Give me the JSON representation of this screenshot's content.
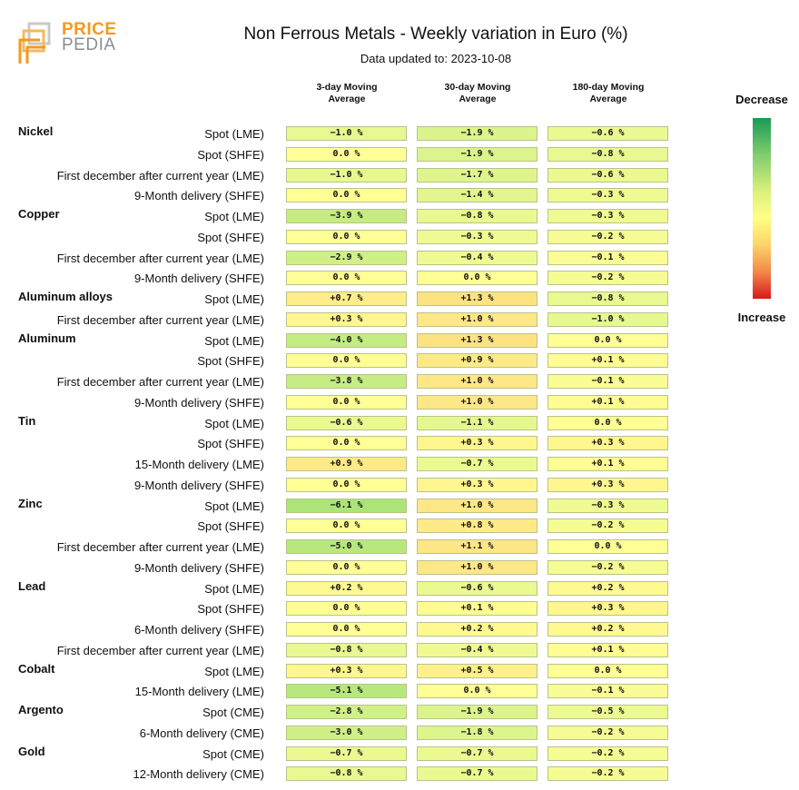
{
  "header": {
    "logo_top": "PRICE",
    "logo_bottom": "PEDIA",
    "title": "Non Ferrous Metals - Weekly variation in Euro (%)",
    "subtitle": "Data updated to: 2023-10-08"
  },
  "legend": {
    "top": "Decrease",
    "bottom": "Increase"
  },
  "colors": {
    "accent": "#f39a1e",
    "logo_gray": "#8a8f96"
  },
  "chart_data": {
    "type": "table",
    "columns": [
      "3-day Moving\nAverage",
      "30-day Moving\nAverage",
      "180-day Moving\nAverage"
    ],
    "groups": [
      {
        "name": "Nickel",
        "rows": [
          {
            "label": "Spot (LME)",
            "values": [
              -1.0,
              -1.9,
              -0.6
            ],
            "text": [
              "−1.0 %",
              "−1.9 %",
              "−0.6 %"
            ]
          },
          {
            "label": "Spot (SHFE)",
            "values": [
              0.0,
              -1.9,
              -0.8
            ],
            "text": [
              "0.0 %",
              "−1.9 %",
              "−0.8 %"
            ]
          },
          {
            "label": "First december after current year (LME)",
            "values": [
              -1.0,
              -1.7,
              -0.6
            ],
            "text": [
              "−1.0 %",
              "−1.7 %",
              "−0.6 %"
            ]
          },
          {
            "label": "9-Month delivery (SHFE)",
            "values": [
              0.0,
              -1.4,
              -0.3
            ],
            "text": [
              "0.0 %",
              "−1.4 %",
              "−0.3 %"
            ]
          }
        ]
      },
      {
        "name": "Copper",
        "rows": [
          {
            "label": "Spot (LME)",
            "values": [
              -3.9,
              -0.8,
              -0.3
            ],
            "text": [
              "−3.9 %",
              "−0.8 %",
              "−0.3 %"
            ]
          },
          {
            "label": "Spot (SHFE)",
            "values": [
              0.0,
              -0.3,
              -0.2
            ],
            "text": [
              "0.0 %",
              "−0.3 %",
              "−0.2 %"
            ]
          },
          {
            "label": "First december after current year (LME)",
            "values": [
              -2.9,
              -0.4,
              -0.1
            ],
            "text": [
              "−2.9 %",
              "−0.4 %",
              "−0.1 %"
            ]
          },
          {
            "label": "9-Month delivery (SHFE)",
            "values": [
              0.0,
              0.0,
              -0.2
            ],
            "text": [
              "0.0 %",
              "0.0 %",
              "−0.2 %"
            ]
          }
        ]
      },
      {
        "name": "Aluminum alloys",
        "rows": [
          {
            "label": "Spot (LME)",
            "values": [
              0.7,
              1.3,
              -0.8
            ],
            "text": [
              "+0.7 %",
              "+1.3 %",
              "−0.8 %"
            ]
          },
          {
            "label": "First december after current year (LME)",
            "values": [
              0.3,
              1.0,
              -1.0
            ],
            "text": [
              "+0.3 %",
              "+1.0 %",
              "−1.0 %"
            ]
          }
        ]
      },
      {
        "name": "Aluminum",
        "rows": [
          {
            "label": "Spot (LME)",
            "values": [
              -4.0,
              1.3,
              0.0
            ],
            "text": [
              "−4.0 %",
              "+1.3 %",
              "0.0 %"
            ]
          },
          {
            "label": "Spot (SHFE)",
            "values": [
              0.0,
              0.9,
              0.1
            ],
            "text": [
              "0.0 %",
              "+0.9 %",
              "+0.1 %"
            ]
          },
          {
            "label": "First december after current year (LME)",
            "values": [
              -3.8,
              1.0,
              -0.1
            ],
            "text": [
              "−3.8 %",
              "+1.0 %",
              "−0.1 %"
            ]
          },
          {
            "label": "9-Month delivery (SHFE)",
            "values": [
              0.0,
              1.0,
              0.1
            ],
            "text": [
              "0.0 %",
              "+1.0 %",
              "+0.1 %"
            ]
          }
        ]
      },
      {
        "name": "Tin",
        "rows": [
          {
            "label": "Spot (LME)",
            "values": [
              -0.6,
              -1.1,
              0.0
            ],
            "text": [
              "−0.6 %",
              "−1.1 %",
              "0.0 %"
            ]
          },
          {
            "label": "Spot (SHFE)",
            "values": [
              0.0,
              0.3,
              0.3
            ],
            "text": [
              "0.0 %",
              "+0.3 %",
              "+0.3 %"
            ]
          },
          {
            "label": "15-Month delivery (LME)",
            "values": [
              0.9,
              -0.7,
              0.1
            ],
            "text": [
              "+0.9 %",
              "−0.7 %",
              "+0.1 %"
            ]
          },
          {
            "label": "9-Month delivery (SHFE)",
            "values": [
              0.0,
              0.3,
              0.3
            ],
            "text": [
              "0.0 %",
              "+0.3 %",
              "+0.3 %"
            ]
          }
        ]
      },
      {
        "name": "Zinc",
        "rows": [
          {
            "label": "Spot (LME)",
            "values": [
              -6.1,
              1.0,
              -0.3
            ],
            "text": [
              "−6.1 %",
              "+1.0 %",
              "−0.3 %"
            ]
          },
          {
            "label": "Spot (SHFE)",
            "values": [
              0.0,
              0.8,
              -0.2
            ],
            "text": [
              "0.0 %",
              "+0.8 %",
              "−0.2 %"
            ]
          },
          {
            "label": "First december after current year (LME)",
            "values": [
              -5.0,
              1.1,
              0.0
            ],
            "text": [
              "−5.0 %",
              "+1.1 %",
              "0.0 %"
            ]
          },
          {
            "label": "9-Month delivery (SHFE)",
            "values": [
              0.0,
              1.0,
              -0.2
            ],
            "text": [
              "0.0 %",
              "+1.0 %",
              "−0.2 %"
            ]
          }
        ]
      },
      {
        "name": "Lead",
        "rows": [
          {
            "label": "Spot (LME)",
            "values": [
              0.2,
              -0.6,
              0.2
            ],
            "text": [
              "+0.2 %",
              "−0.6 %",
              "+0.2 %"
            ]
          },
          {
            "label": "Spot (SHFE)",
            "values": [
              0.0,
              0.1,
              0.3
            ],
            "text": [
              "0.0 %",
              "+0.1 %",
              "+0.3 %"
            ]
          },
          {
            "label": "6-Month delivery (SHFE)",
            "values": [
              0.0,
              0.2,
              0.2
            ],
            "text": [
              "0.0 %",
              "+0.2 %",
              "+0.2 %"
            ]
          },
          {
            "label": "First december after current year (LME)",
            "values": [
              -0.8,
              -0.4,
              0.1
            ],
            "text": [
              "−0.8 %",
              "−0.4 %",
              "+0.1 %"
            ]
          }
        ]
      },
      {
        "name": "Cobalt",
        "rows": [
          {
            "label": "Spot (LME)",
            "values": [
              0.3,
              0.5,
              0.0
            ],
            "text": [
              "+0.3 %",
              "+0.5 %",
              "0.0 %"
            ]
          },
          {
            "label": "15-Month delivery (LME)",
            "values": [
              -5.1,
              0.0,
              -0.1
            ],
            "text": [
              "−5.1 %",
              "0.0 %",
              "−0.1 %"
            ]
          }
        ]
      },
      {
        "name": "Argento",
        "rows": [
          {
            "label": "Spot (CME)",
            "values": [
              -2.8,
              -1.9,
              -0.5
            ],
            "text": [
              "−2.8 %",
              "−1.9 %",
              "−0.5 %"
            ]
          },
          {
            "label": "6-Month delivery (CME)",
            "values": [
              -3.0,
              -1.8,
              -0.2
            ],
            "text": [
              "−3.0 %",
              "−1.8 %",
              "−0.2 %"
            ]
          }
        ]
      },
      {
        "name": "Gold",
        "rows": [
          {
            "label": "Spot (CME)",
            "values": [
              -0.7,
              -0.7,
              -0.2
            ],
            "text": [
              "−0.7 %",
              "−0.7 %",
              "−0.2 %"
            ]
          },
          {
            "label": "12-Month delivery (CME)",
            "values": [
              -0.8,
              -0.7,
              -0.2
            ],
            "text": [
              "−0.8 %",
              "−0.7 %",
              "−0.2 %"
            ]
          }
        ]
      }
    ]
  }
}
